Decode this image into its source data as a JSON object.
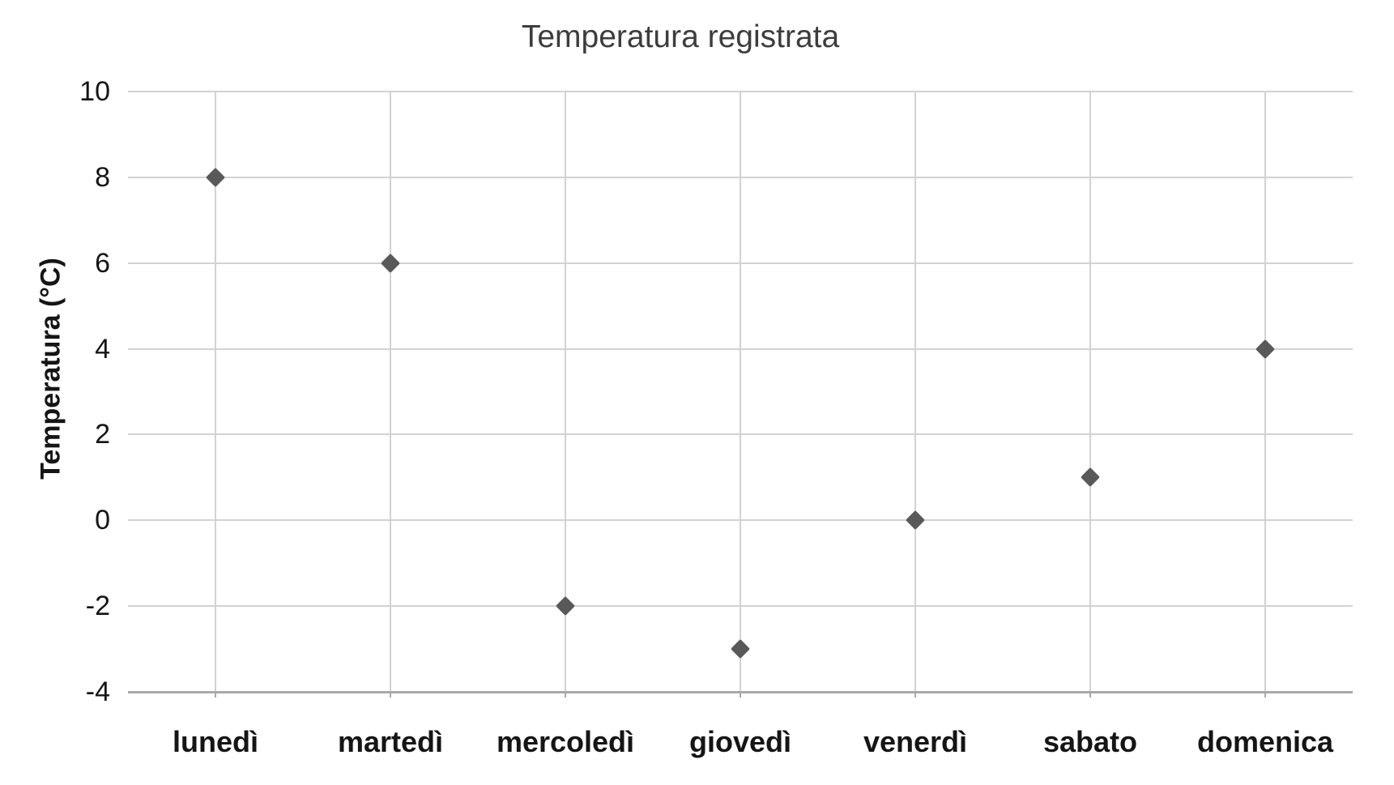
{
  "page": {
    "background": "#ffffff"
  },
  "chart_data": {
    "type": "scatter",
    "title": "Temperatura registrata",
    "xlabel": "",
    "ylabel": "Temperatura (°C)",
    "categories": [
      "lunedì",
      "martedì",
      "mercoledì",
      "giovedì",
      "venerdì",
      "sabato",
      "domenica"
    ],
    "series": [
      {
        "name": "Temperatura",
        "values": [
          8,
          6,
          -2,
          -3,
          0,
          1,
          4
        ]
      }
    ],
    "ylim": [
      -4,
      10
    ],
    "yticks": [
      10,
      8,
      6,
      4,
      2,
      0,
      -2,
      -4
    ],
    "grid": true,
    "legend": "none",
    "marker": {
      "shape": "diamond",
      "color": "#595959",
      "size": 17
    },
    "colors": {
      "gridline": "#d2d2d2",
      "axis_line": "#a9a9a9",
      "title": "#3d3d3d",
      "tick_label": "#151515"
    }
  }
}
